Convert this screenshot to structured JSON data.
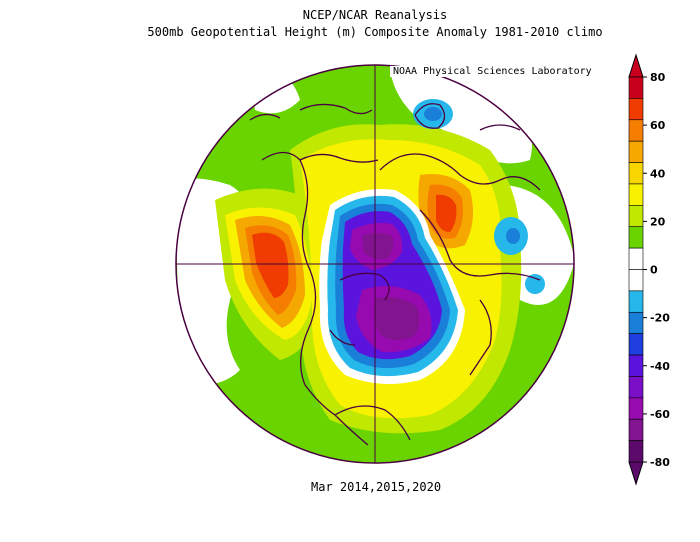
{
  "header": {
    "title": "NCEP/NCAR Reanalysis",
    "subtitle": "500mb Geopotential Height (m) Composite Anomaly 1981-2010 climo",
    "credit": "NOAA Physical Sciences Laboratory"
  },
  "footer": {
    "period": "Mar 2014,2015,2020"
  },
  "colorbar": {
    "ticks": [
      "80",
      "60",
      "40",
      "20",
      "0",
      "-20",
      "-40",
      "-60",
      "-80"
    ],
    "colors": [
      "#c8001e",
      "#f03c00",
      "#f57d00",
      "#f5a800",
      "#f7d500",
      "#f8f200",
      "#c0e800",
      "#6ad400",
      "#ffffff",
      "#ffffff",
      "#26b8ea",
      "#1a7fd8",
      "#1f3fe0",
      "#5a14de",
      "#7a0fc7",
      "#960ab0",
      "#82148f",
      "#5c0a6a"
    ]
  }
}
